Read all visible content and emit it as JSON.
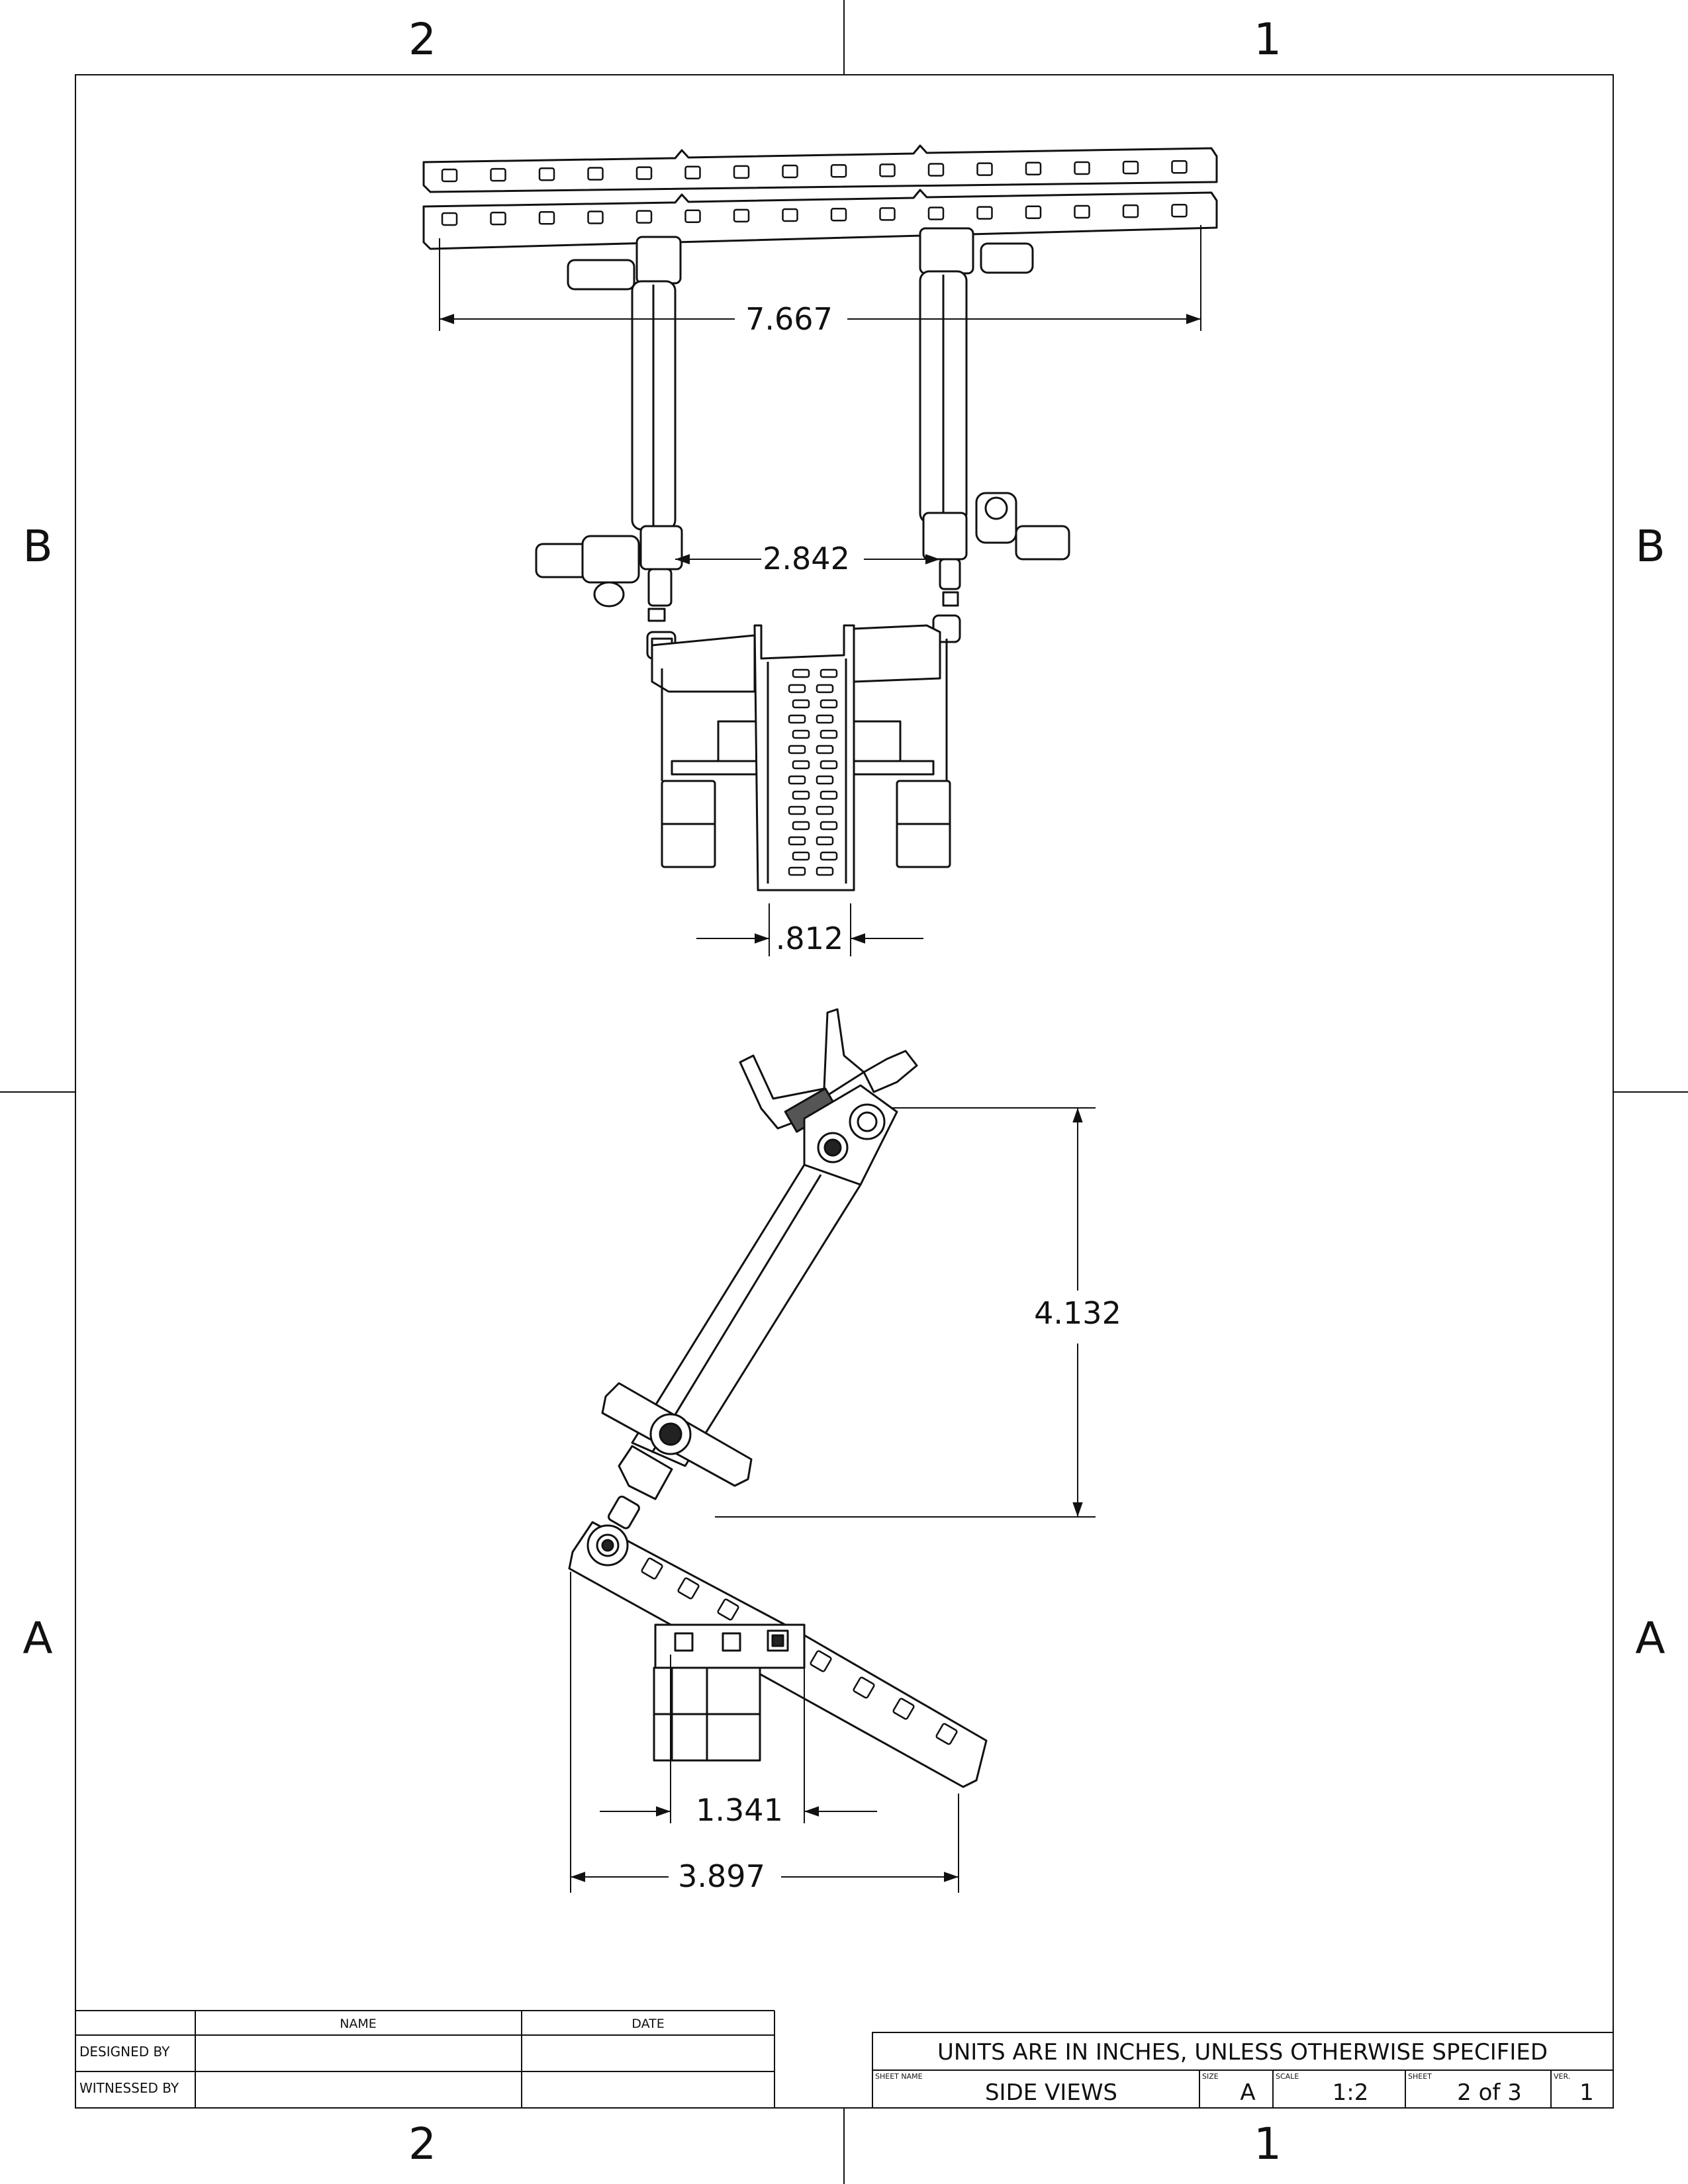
{
  "zones": {
    "top_left": "2",
    "top_right": "1",
    "bottom_left": "2",
    "bottom_right": "1",
    "left_upper": "B",
    "left_lower": "A",
    "right_upper": "B",
    "right_lower": "A"
  },
  "dimensions": {
    "rail_width": "7.667",
    "arm_spacing": "2.842",
    "bracket_width": ".812",
    "arm_height": "4.132",
    "foot_offset": "1.341",
    "overall_depth": "3.897"
  },
  "approval_table": {
    "col_name": "NAME",
    "col_date": "DATE",
    "rows": [
      {
        "label": "DESIGNED BY",
        "name": "",
        "date": ""
      },
      {
        "label": "WITNESSED BY",
        "name": "",
        "date": ""
      }
    ]
  },
  "title_block": {
    "note": "UNITS ARE IN INCHES, UNLESS OTHERWISE SPECIFIED",
    "sheet_name_label": "SHEET NAME",
    "sheet_name": "SIDE VIEWS",
    "size_label": "SIZE",
    "size": "A",
    "scale_label": "SCALE",
    "scale": "1:2",
    "sheet_label": "SHEET",
    "sheet": "2 of 3",
    "ver_label": "VER.",
    "ver": "1"
  }
}
